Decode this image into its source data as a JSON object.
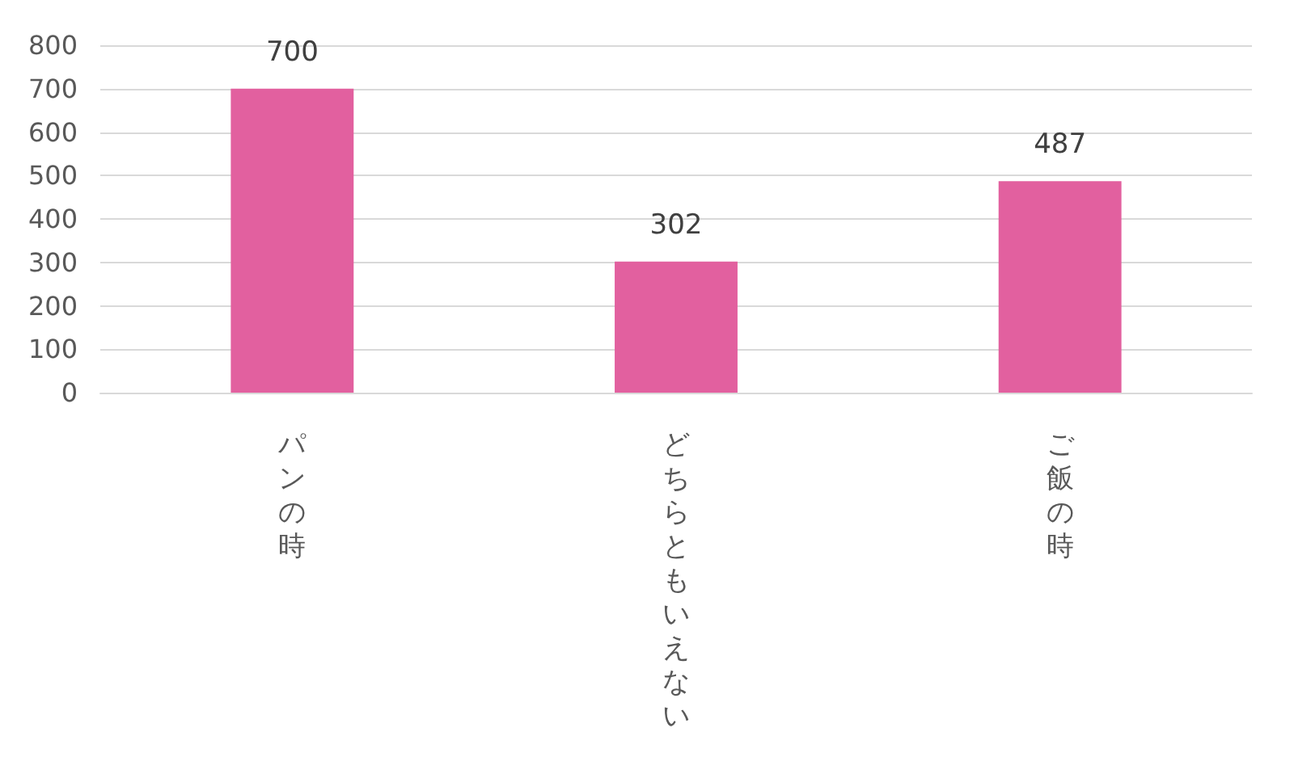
{
  "chart_data": {
    "type": "bar",
    "categories": [
      "パンの時",
      "どちらともいえない",
      "ご飯の時"
    ],
    "values": [
      700,
      302,
      487
    ],
    "color": "#e2609f",
    "ylim": [
      0,
      800
    ],
    "yticks": [
      0,
      100,
      200,
      300,
      400,
      500,
      600,
      700,
      800
    ],
    "grid": "y",
    "data_labels": true
  }
}
